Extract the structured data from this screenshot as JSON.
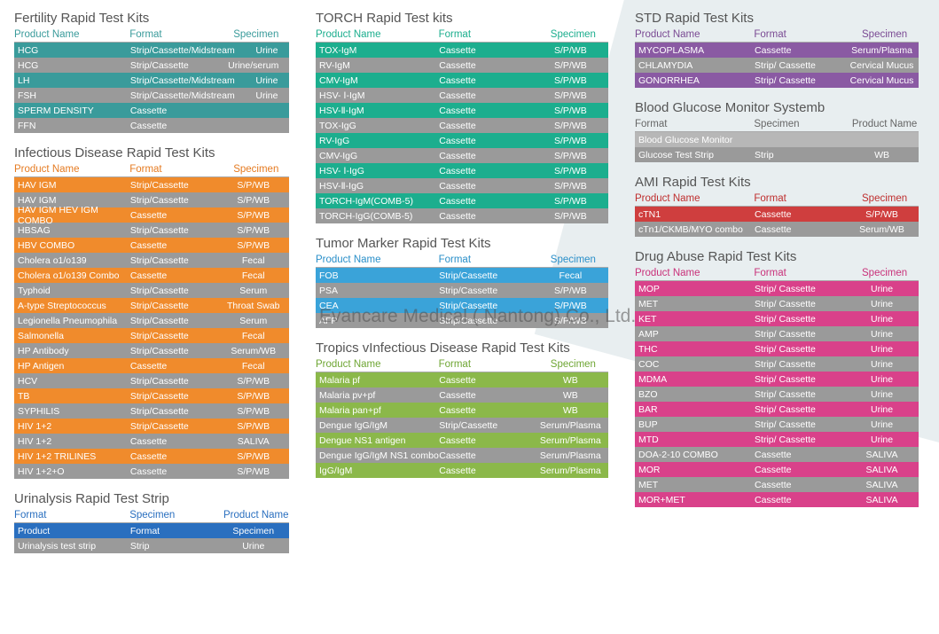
{
  "watermark": "Evancare Medical ( Nantong) Co., Ltd.",
  "labels": {
    "product": "Product Name",
    "format": "Format",
    "specimen": "Specimen"
  },
  "colors": {
    "teal": "#3a9b9b",
    "gray": "#9a9a9a",
    "orange": "#f08b2c",
    "emerald": "#1cae8e",
    "skyblue": "#3aa3d9",
    "green": "#8bb84a",
    "purple": "#8a5aa3",
    "pink": "#d9418a",
    "red": "#cf3e3e",
    "h_orange": "#e57b22",
    "h_blue": "#2a6fbf",
    "h_skyblue": "#2a8fc9",
    "h_green": "#6fa634",
    "h_purple": "#7a4a93",
    "h_pink": "#c9317a",
    "h_red": "#bf2e2e",
    "h_gray": "#666"
  },
  "sections": {
    "fertility": {
      "title": "Fertility Rapid Test Kits",
      "hdr_color": "#3a9b9b",
      "rows": [
        {
          "p": "HCG",
          "f": "Strip/Cassette/Midstream",
          "s": "Urine",
          "c": "teal"
        },
        {
          "p": "HCG",
          "f": "Strip/Cassette",
          "s": "Urine/serum",
          "c": "gray"
        },
        {
          "p": "LH",
          "f": "Strip/Cassette/Midstream",
          "s": "Urine",
          "c": "teal"
        },
        {
          "p": "FSH",
          "f": "Strip/Cassette/Midstream",
          "s": "Urine",
          "c": "gray"
        },
        {
          "p": "SPERM DENSITY",
          "f": "Cassette",
          "s": "",
          "c": "teal"
        },
        {
          "p": "FFN",
          "f": "Cassette",
          "s": "",
          "c": "gray"
        }
      ]
    },
    "infectious": {
      "title": "Infectious Disease Rapid Test Kits",
      "hdr_color": "#e57b22",
      "rows": [
        {
          "p": "HAV IGM",
          "f": "Strip/Cassette",
          "s": "S/P/WB",
          "c": "orange"
        },
        {
          "p": "HAV IGM",
          "f": "Strip/Cassette",
          "s": "S/P/WB",
          "c": "gray"
        },
        {
          "p": "HAV IGM HEV IGM COMBO",
          "f": "Cassette",
          "s": "S/P/WB",
          "c": "orange"
        },
        {
          "p": "HBSAG",
          "f": "Strip/Cassette",
          "s": "S/P/WB",
          "c": "gray"
        },
        {
          "p": "HBV COMBO",
          "f": "Cassette",
          "s": "S/P/WB",
          "c": "orange"
        },
        {
          "p": "Cholera o1/o139",
          "f": "Strip/Cassette",
          "s": "Fecal",
          "c": "gray"
        },
        {
          "p": "Cholera o1/o139  Combo",
          "f": "Cassette",
          "s": "Fecal",
          "c": "orange"
        },
        {
          "p": "Typhoid",
          "f": "Strip/Cassette",
          "s": "Serum",
          "c": "gray"
        },
        {
          "p": "A-type Streptococcus",
          "f": "Strip/Cassette",
          "s": "Throat Swab",
          "c": "orange"
        },
        {
          "p": "Legionella Pneumophila",
          "f": "Strip/Cassette",
          "s": "Serum",
          "c": "gray"
        },
        {
          "p": "Salmonella",
          "f": "Strip/Cassette",
          "s": "Fecal",
          "c": "orange"
        },
        {
          "p": "HP Antibody",
          "f": "Strip/Cassette",
          "s": "Serum/WB",
          "c": "gray"
        },
        {
          "p": "HP Antigen",
          "f": "Cassette",
          "s": "Fecal",
          "c": "orange"
        },
        {
          "p": "HCV",
          "f": "Strip/Cassette",
          "s": "S/P/WB",
          "c": "gray"
        },
        {
          "p": "TB",
          "f": "Strip/Cassette",
          "s": "S/P/WB",
          "c": "orange"
        },
        {
          "p": "SYPHILIS",
          "f": "Strip/Cassette",
          "s": "S/P/WB",
          "c": "gray"
        },
        {
          "p": "HIV 1+2",
          "f": "Strip/Cassette",
          "s": "S/P/WB",
          "c": "orange"
        },
        {
          "p": "HIV 1+2",
          "f": "Cassette",
          "s": "SALIVA",
          "c": "gray"
        },
        {
          "p": "HIV 1+2 TRILINES",
          "f": "Cassette",
          "s": "S/P/WB",
          "c": "orange"
        },
        {
          "p": "HIV 1+2+O",
          "f": "Cassette",
          "s": "S/P/WB",
          "c": "gray"
        }
      ]
    },
    "urinalysis": {
      "title": "Urinalysis Rapid Test Strip",
      "hdr_color": "#2a6fbf",
      "hdrs": [
        "Format",
        "Specimen",
        "Product Name"
      ],
      "rows": [
        {
          "p": "Product",
          "f": "Format",
          "s": "Specimen",
          "c": "blue"
        },
        {
          "p": "Urinalysis test strip",
          "f": "Strip",
          "s": "Urine",
          "c": "gray"
        }
      ]
    },
    "torch": {
      "title": "TORCH Rapid Test kits",
      "hdr_color": "#1cae8e",
      "rows": [
        {
          "p": "TOX-IgM",
          "f": "Cassette",
          "s": "S/P/WB",
          "c": "emerald"
        },
        {
          "p": "RV-IgM",
          "f": "Cassette",
          "s": "S/P/WB",
          "c": "gray"
        },
        {
          "p": "CMV-IgM",
          "f": "Cassette",
          "s": "S/P/WB",
          "c": "emerald"
        },
        {
          "p": "HSV- Ⅰ-IgM",
          "f": "Cassette",
          "s": "S/P/WB",
          "c": "gray"
        },
        {
          "p": "HSV-Ⅱ-IgM",
          "f": "Cassette",
          "s": "S/P/WB",
          "c": "emerald"
        },
        {
          "p": "TOX-IgG",
          "f": "Cassette",
          "s": "S/P/WB",
          "c": "gray"
        },
        {
          "p": "RV-IgG",
          "f": "Cassette",
          "s": "S/P/WB",
          "c": "emerald"
        },
        {
          "p": "CMV-IgG",
          "f": "Cassette",
          "s": "S/P/WB",
          "c": "gray"
        },
        {
          "p": "HSV- Ⅰ-IgG",
          "f": "Cassette",
          "s": "S/P/WB",
          "c": "emerald"
        },
        {
          "p": "HSV-Ⅱ-IgG",
          "f": "Cassette",
          "s": "S/P/WB",
          "c": "gray"
        },
        {
          "p": "TORCH-IgM(COMB-5)",
          "f": "Cassette",
          "s": "S/P/WB",
          "c": "emerald"
        },
        {
          "p": "TORCH-IgG(COMB-5)",
          "f": "Cassette",
          "s": "S/P/WB",
          "c": "gray"
        }
      ]
    },
    "tumor": {
      "title": "Tumor Marker Rapid Test Kits",
      "hdr_color": "#2a8fc9",
      "rows": [
        {
          "p": "FOB",
          "f": "Strip/Cassette",
          "s": "Fecal",
          "c": "skyblue"
        },
        {
          "p": "PSA",
          "f": "Strip/Cassette",
          "s": "S/P/WB",
          "c": "gray"
        },
        {
          "p": "CEA",
          "f": "Strip/Cassette",
          "s": "S/P/WB",
          "c": "skyblue"
        },
        {
          "p": "AFP",
          "f": "Strip/Cassette",
          "s": "S/P/WB",
          "c": "gray"
        }
      ]
    },
    "tropics": {
      "title": "Tropics vInfectious Disease Rapid Test Kits",
      "hdr_color": "#6fa634",
      "rows": [
        {
          "p": "Malaria pf",
          "f": "Cassette",
          "s": "WB",
          "c": "green"
        },
        {
          "p": "Malaria  pv+pf",
          "f": "Cassette",
          "s": "WB",
          "c": "gray"
        },
        {
          "p": "Malaria  pan+pf",
          "f": "Cassette",
          "s": "WB",
          "c": "green"
        },
        {
          "p": "Dengue IgG/IgM",
          "f": "Strip/Cassette",
          "s": "Serum/Plasma",
          "c": "gray"
        },
        {
          "p": "Dengue NS1 antigen",
          "f": "Cassette",
          "s": "Serum/Plasma",
          "c": "green"
        },
        {
          "p": "Dengue IgG/IgM  NS1 combo",
          "f": "Cassette",
          "s": "Serum/Plasma",
          "c": "gray"
        },
        {
          "p": "          IgG/IgM",
          "f": "Cassette",
          "s": "Serum/Plasma",
          "c": "green"
        }
      ]
    },
    "std": {
      "title": "STD Rapid Test Kits",
      "hdr_color": "#7a4a93",
      "rows": [
        {
          "p": "MYCOPLASMA",
          "f": "Cassette",
          "s": "Serum/Plasma",
          "c": "purple"
        },
        {
          "p": "CHLAMYDIA",
          "f": "Strip/ Cassette",
          "s": "Cervical Mucus",
          "c": "gray"
        },
        {
          "p": "GONORRHEA",
          "f": "Strip/ Cassette",
          "s": "Cervical Mucus",
          "c": "purple"
        }
      ]
    },
    "glucose": {
      "title": "Blood Glucose Monitor Systemb",
      "hdr_color": "#666",
      "hdrs": [
        "Format",
        "Specimen",
        "Product Name"
      ],
      "rows": [
        {
          "p": "Blood Glucose Monitor",
          "f": "",
          "s": "",
          "c": "gray"
        },
        {
          "p": "Glucose Test Strip",
          "f": "Strip",
          "s": "WB",
          "c": "gray"
        }
      ]
    },
    "ami": {
      "title": "AMI  Rapid Test Kits",
      "hdr_color": "#bf2e2e",
      "rows": [
        {
          "p": "cTN1",
          "f": "Cassette",
          "s": "S/P/WB",
          "c": "red"
        },
        {
          "p": "cTn1/CKMB/MYO combo",
          "f": "Cassette",
          "s": "Serum/WB",
          "c": "gray"
        }
      ]
    },
    "drug": {
      "title": "Drug Abuse Rapid Test Kits",
      "hdr_color": "#c9317a",
      "rows": [
        {
          "p": "MOP",
          "f": "Strip/ Cassette",
          "s": "Urine",
          "c": "pink"
        },
        {
          "p": "MET",
          "f": "Strip/ Cassette",
          "s": "Urine",
          "c": "gray"
        },
        {
          "p": "KET",
          "f": "Strip/ Cassette",
          "s": "Urine",
          "c": "pink"
        },
        {
          "p": "AMP",
          "f": "Strip/ Cassette",
          "s": "Urine",
          "c": "gray"
        },
        {
          "p": "THC",
          "f": "Strip/ Cassette",
          "s": "Urine",
          "c": "pink"
        },
        {
          "p": "COC",
          "f": "Strip/ Cassette",
          "s": "Urine",
          "c": "gray"
        },
        {
          "p": "MDMA",
          "f": "Strip/ Cassette",
          "s": "Urine",
          "c": "pink"
        },
        {
          "p": "BZO",
          "f": "Strip/ Cassette",
          "s": "Urine",
          "c": "gray"
        },
        {
          "p": "BAR",
          "f": "Strip/ Cassette",
          "s": "Urine",
          "c": "pink"
        },
        {
          "p": "BUP",
          "f": "Strip/ Cassette",
          "s": "Urine",
          "c": "gray"
        },
        {
          "p": "MTD",
          "f": "Strip/ Cassette",
          "s": "Urine",
          "c": "pink"
        },
        {
          "p": "DOA-2-10 COMBO",
          "f": "Cassette",
          "s": "SALIVA",
          "c": "gray"
        },
        {
          "p": "MOR",
          "f": "Cassette",
          "s": "SALIVA",
          "c": "pink"
        },
        {
          "p": "MET",
          "f": "Cassette",
          "s": "SALIVA",
          "c": "gray"
        },
        {
          "p": "MOR+MET",
          "f": "Cassette",
          "s": "SALIVA",
          "c": "pink"
        }
      ]
    }
  },
  "layout": {
    "col1": [
      "fertility",
      "infectious",
      "urinalysis"
    ],
    "col2": [
      "torch",
      "tumor",
      "tropics"
    ],
    "col3": [
      "std",
      "glucose",
      "ami",
      "drug"
    ]
  }
}
